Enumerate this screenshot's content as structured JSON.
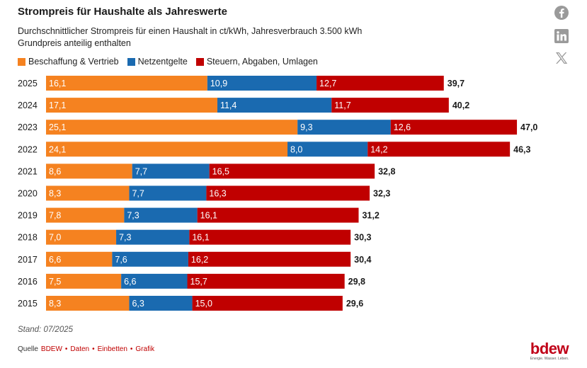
{
  "title": "Strompreis für Haushalte als Jahreswerte",
  "subtitle_line1": "Durchschnittlicher Strompreis für einen Haushalt in ct/kWh, Jahresverbrauch 3.500 kWh",
  "subtitle_line2": "Grundpreis anteilig enthalten",
  "legend": [
    {
      "label": "Beschaffung & Vertrieb",
      "color": "#f58220"
    },
    {
      "label": "Netzentgelte",
      "color": "#1a6ab0"
    },
    {
      "label": "Steuern, Abgaben, Umlagen",
      "color": "#c00000"
    }
  ],
  "chart_data": {
    "type": "bar",
    "orientation": "horizontal",
    "stacked": true,
    "categories": [
      "2025",
      "2024",
      "2023",
      "2022",
      "2021",
      "2020",
      "2019",
      "2018",
      "2017",
      "2016",
      "2015"
    ],
    "series": [
      {
        "name": "Beschaffung & Vertrieb",
        "color": "#f58220",
        "values": [
          16.1,
          17.1,
          25.1,
          24.1,
          8.6,
          8.3,
          7.8,
          7.0,
          6.6,
          7.5,
          8.3
        ],
        "labels": [
          "16,1",
          "17,1",
          "25,1",
          "24,1",
          "8,6",
          "8,3",
          "7,8",
          "7,0",
          "6,6",
          "7,5",
          "8,3"
        ]
      },
      {
        "name": "Netzentgelte",
        "color": "#1a6ab0",
        "values": [
          10.9,
          11.4,
          9.3,
          8.0,
          7.7,
          7.7,
          7.3,
          7.3,
          7.6,
          6.6,
          6.3
        ],
        "labels": [
          "10,9",
          "11,4",
          "9,3",
          "8,0",
          "7,7",
          "7,7",
          "7,3",
          "7,3",
          "7,6",
          "6,6",
          "6,3"
        ]
      },
      {
        "name": "Steuern, Abgaben, Umlagen",
        "color": "#c00000",
        "values": [
          12.7,
          11.7,
          12.6,
          14.2,
          16.5,
          16.3,
          16.1,
          16.1,
          16.2,
          15.7,
          15.0
        ],
        "labels": [
          "12,7",
          "11,7",
          "12,6",
          "14,2",
          "16,5",
          "16,3",
          "16,1",
          "16,1",
          "16,2",
          "15,7",
          "15,0"
        ]
      }
    ],
    "totals": [
      39.7,
      40.2,
      47.0,
      46.3,
      32.8,
      32.3,
      31.2,
      30.3,
      30.4,
      29.8,
      29.6
    ],
    "total_labels": [
      "39,7",
      "40,2",
      "47,0",
      "46,3",
      "32,8",
      "32,3",
      "31,2",
      "30,3",
      "30,4",
      "29,8",
      "29,6"
    ],
    "grid": false,
    "legend_position": "top-left"
  },
  "footnote": "Stand: 07/2025",
  "source": {
    "prefix": "Quelle",
    "name": "BDEW",
    "links": [
      "Daten",
      "Einbetten",
      "Grafik"
    ],
    "separator": "•"
  },
  "social_icons": [
    "facebook-icon",
    "linkedin-icon",
    "x-icon"
  ],
  "logo": {
    "word": "bdew",
    "tagline": "Energie. Wasser. Leben."
  }
}
